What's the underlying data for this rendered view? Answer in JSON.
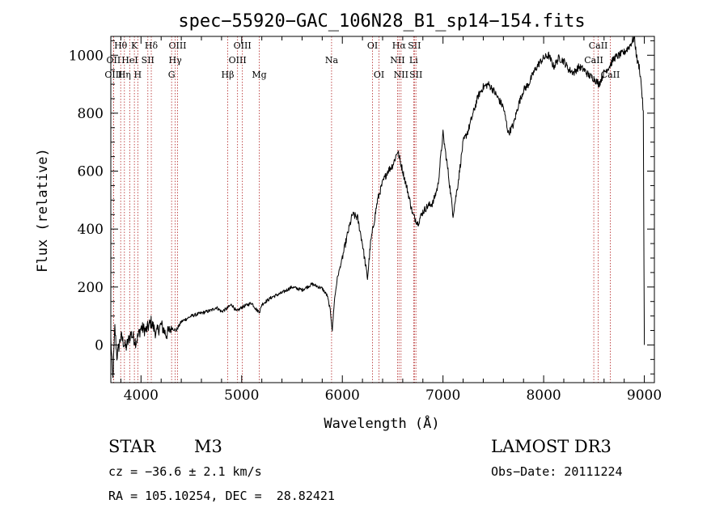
{
  "chart_data": {
    "type": "line",
    "title": "spec−55920−GAC_106N28_B1_sp14−154.fits",
    "xlabel": "Wavelength (Å)",
    "ylabel": "Flux (relative)",
    "xlim": [
      3700,
      9100
    ],
    "ylim": [
      -130,
      1065
    ],
    "xticks": [
      4000,
      5000,
      6000,
      7000,
      8000,
      9000
    ],
    "yticks": [
      0,
      200,
      400,
      600,
      800,
      1000
    ],
    "series": [
      {
        "name": "flux",
        "anchors": [
          [
            3700,
            20
          ],
          [
            3720,
            -120
          ],
          [
            3740,
            60
          ],
          [
            3760,
            -40
          ],
          [
            3800,
            30
          ],
          [
            3850,
            -10
          ],
          [
            3900,
            40
          ],
          [
            3950,
            10
          ],
          [
            4000,
            60
          ],
          [
            4050,
            50
          ],
          [
            4100,
            80
          ],
          [
            4150,
            40
          ],
          [
            4200,
            70
          ],
          [
            4250,
            35
          ],
          [
            4300,
            60
          ],
          [
            4350,
            50
          ],
          [
            4400,
            80
          ],
          [
            4500,
            100
          ],
          [
            4600,
            110
          ],
          [
            4700,
            120
          ],
          [
            4750,
            130
          ],
          [
            4800,
            115
          ],
          [
            4850,
            125
          ],
          [
            4900,
            140
          ],
          [
            4950,
            115
          ],
          [
            5000,
            130
          ],
          [
            5100,
            145
          ],
          [
            5150,
            120
          ],
          [
            5180,
            115
          ],
          [
            5200,
            140
          ],
          [
            5300,
            165
          ],
          [
            5400,
            180
          ],
          [
            5500,
            200
          ],
          [
            5600,
            190
          ],
          [
            5700,
            210
          ],
          [
            5800,
            195
          ],
          [
            5850,
            170
          ],
          [
            5880,
            120
          ],
          [
            5900,
            50
          ],
          [
            5920,
            150
          ],
          [
            5950,
            230
          ],
          [
            6000,
            300
          ],
          [
            6050,
            380
          ],
          [
            6100,
            450
          ],
          [
            6150,
            440
          ],
          [
            6200,
            350
          ],
          [
            6220,
            300
          ],
          [
            6250,
            230
          ],
          [
            6280,
            350
          ],
          [
            6350,
            500
          ],
          [
            6400,
            560
          ],
          [
            6450,
            600
          ],
          [
            6500,
            620
          ],
          [
            6550,
            670
          ],
          [
            6600,
            600
          ],
          [
            6650,
            530
          ],
          [
            6700,
            450
          ],
          [
            6750,
            420
          ],
          [
            6800,
            460
          ],
          [
            6850,
            480
          ],
          [
            6900,
            490
          ],
          [
            6950,
            550
          ],
          [
            7000,
            730
          ],
          [
            7050,
            600
          ],
          [
            7100,
            450
          ],
          [
            7150,
            560
          ],
          [
            7200,
            700
          ],
          [
            7250,
            740
          ],
          [
            7300,
            800
          ],
          [
            7350,
            860
          ],
          [
            7400,
            890
          ],
          [
            7450,
            900
          ],
          [
            7500,
            880
          ],
          [
            7550,
            850
          ],
          [
            7600,
            820
          ],
          [
            7650,
            730
          ],
          [
            7700,
            760
          ],
          [
            7750,
            830
          ],
          [
            7800,
            880
          ],
          [
            7850,
            900
          ],
          [
            7900,
            940
          ],
          [
            7950,
            970
          ],
          [
            8000,
            990
          ],
          [
            8050,
            1000
          ],
          [
            8100,
            960
          ],
          [
            8150,
            990
          ],
          [
            8200,
            980
          ],
          [
            8250,
            950
          ],
          [
            8300,
            940
          ],
          [
            8350,
            960
          ],
          [
            8400,
            950
          ],
          [
            8450,
            930
          ],
          [
            8500,
            920
          ],
          [
            8550,
            900
          ],
          [
            8600,
            940
          ],
          [
            8650,
            960
          ],
          [
            8700,
            990
          ],
          [
            8750,
            1000
          ],
          [
            8800,
            1010
          ],
          [
            8850,
            1030
          ],
          [
            8900,
            1060
          ],
          [
            8930,
            980
          ],
          [
            8950,
            960
          ],
          [
            8970,
            900
          ],
          [
            8990,
            800
          ],
          [
            9000,
            0
          ]
        ]
      }
    ],
    "lines": [
      {
        "name": "Hθ",
        "wl": 3798,
        "row": 0
      },
      {
        "name": "OII",
        "wl": 3727,
        "row": 1
      },
      {
        "name": "OIII",
        "wl": 3727,
        "row": 2
      },
      {
        "name": "K",
        "wl": 3934,
        "row": 0
      },
      {
        "name": "HeI",
        "wl": 3889,
        "row": 1
      },
      {
        "name": "Hη",
        "wl": 3835,
        "row": 2
      },
      {
        "name": "H",
        "wl": 3968,
        "row": 2
      },
      {
        "name": "SII",
        "wl": 4068,
        "row": 1
      },
      {
        "name": "Hδ",
        "wl": 4102,
        "row": 0
      },
      {
        "name": "OIII",
        "wl": 4363,
        "row": 0
      },
      {
        "name": "Hγ",
        "wl": 4340,
        "row": 1
      },
      {
        "name": "G",
        "wl": 4304,
        "row": 2
      },
      {
        "name": "Hβ",
        "wl": 4861,
        "row": 2
      },
      {
        "name": "OIII",
        "wl": 4959,
        "row": 1
      },
      {
        "name": "OIII",
        "wl": 5007,
        "row": 0
      },
      {
        "name": "Mg",
        "wl": 5175,
        "row": 2
      },
      {
        "name": "Na",
        "wl": 5893,
        "row": 1
      },
      {
        "name": "OI",
        "wl": 6300,
        "row": 0
      },
      {
        "name": "OI",
        "wl": 6364,
        "row": 2
      },
      {
        "name": "Hα",
        "wl": 6563,
        "row": 0
      },
      {
        "name": "NII",
        "wl": 6548,
        "row": 1
      },
      {
        "name": "NII",
        "wl": 6583,
        "row": 2
      },
      {
        "name": "SII",
        "wl": 6716,
        "row": 0
      },
      {
        "name": "Li",
        "wl": 6708,
        "row": 1
      },
      {
        "name": "SII",
        "wl": 6731,
        "row": 2
      },
      {
        "name": "CaII",
        "wl": 8542,
        "row": 0
      },
      {
        "name": "CaII",
        "wl": 8498,
        "row": 1
      },
      {
        "name": "CaII",
        "wl": 8662,
        "row": 2
      }
    ]
  },
  "info": {
    "object_class": "STAR",
    "subclass": "M3",
    "survey": "LAMOST DR3",
    "cz": "cz = −36.6 ± 2.1 km/s",
    "obs_date": "Obs−Date: 20111224",
    "coords": "RA = 105.10254, DEC =  28.82421"
  },
  "colors": {
    "axes": "#000000",
    "spectrum": "#000000",
    "line_markers": "#b22222"
  }
}
